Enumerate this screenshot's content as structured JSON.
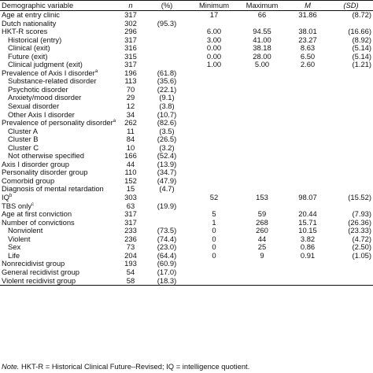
{
  "headers": [
    "Demographic variable",
    "n",
    "(%)",
    "Minimum",
    "Maximum",
    "M",
    "(SD)"
  ],
  "rows": [
    {
      "label": "Age at entry clinic",
      "indent": false,
      "sup": "",
      "n": "317",
      "pct": "",
      "min": "17",
      "max": "66",
      "m": "31.86",
      "sd": "(8.72)"
    },
    {
      "label": "Dutch nationality",
      "indent": false,
      "sup": "",
      "n": "302",
      "pct": "(95.3)",
      "min": "",
      "max": "",
      "m": "",
      "sd": ""
    },
    {
      "label": "HKT-R scores",
      "indent": false,
      "sup": "",
      "n": "296",
      "pct": "",
      "min": "6.00",
      "max": "94.55",
      "m": "38.01",
      "sd": "(16.66)"
    },
    {
      "label": "Historical (entry)",
      "indent": true,
      "sup": "",
      "n": "317",
      "pct": "",
      "min": "3.00",
      "max": "41.00",
      "m": "23.27",
      "sd": "(8.92)"
    },
    {
      "label": "Clinical (exit)",
      "indent": true,
      "sup": "",
      "n": "316",
      "pct": "",
      "min": "0.00",
      "max": "38.18",
      "m": "8.63",
      "sd": "(5.14)"
    },
    {
      "label": "Future (exit)",
      "indent": true,
      "sup": "",
      "n": "315",
      "pct": "",
      "min": "0.00",
      "max": "28.00",
      "m": "6.50",
      "sd": "(5.14)"
    },
    {
      "label": "Clinical judgment (exit)",
      "indent": true,
      "sup": "",
      "n": "317",
      "pct": "",
      "min": "1.00",
      "max": "5.00",
      "m": "2.60",
      "sd": "(1.21)"
    },
    {
      "label": "Prevalence of Axis I disorder",
      "indent": false,
      "sup": "a",
      "n": "196",
      "pct": "(61.8)",
      "min": "",
      "max": "",
      "m": "",
      "sd": ""
    },
    {
      "label": "Substance-related disorder",
      "indent": true,
      "sup": "",
      "n": "113",
      "pct": "(35.6)",
      "min": "",
      "max": "",
      "m": "",
      "sd": ""
    },
    {
      "label": "Psychotic disorder",
      "indent": true,
      "sup": "",
      "n": "70",
      "pct": "(22.1)",
      "min": "",
      "max": "",
      "m": "",
      "sd": ""
    },
    {
      "label": "Anxiety/mood disorder",
      "indent": true,
      "sup": "",
      "n": "29",
      "pct": "(9.1)",
      "min": "",
      "max": "",
      "m": "",
      "sd": ""
    },
    {
      "label": "Sexual disorder",
      "indent": true,
      "sup": "",
      "n": "12",
      "pct": "(3.8)",
      "min": "",
      "max": "",
      "m": "",
      "sd": ""
    },
    {
      "label": "Other Axis I disorder",
      "indent": true,
      "sup": "",
      "n": "34",
      "pct": "(10.7)",
      "min": "",
      "max": "",
      "m": "",
      "sd": ""
    },
    {
      "label": "Prevalence of personality disorder",
      "indent": false,
      "sup": "a",
      "n": "262",
      "pct": "(82.6)",
      "min": "",
      "max": "",
      "m": "",
      "sd": ""
    },
    {
      "label": "Cluster A",
      "indent": true,
      "sup": "",
      "n": "11",
      "pct": "(3.5)",
      "min": "",
      "max": "",
      "m": "",
      "sd": ""
    },
    {
      "label": "Cluster B",
      "indent": true,
      "sup": "",
      "n": "84",
      "pct": "(26.5)",
      "min": "",
      "max": "",
      "m": "",
      "sd": ""
    },
    {
      "label": "Cluster C",
      "indent": true,
      "sup": "",
      "n": "10",
      "pct": "(3.2)",
      "min": "",
      "max": "",
      "m": "",
      "sd": ""
    },
    {
      "label": "Not otherwise specified",
      "indent": true,
      "sup": "",
      "n": "166",
      "pct": "(52.4)",
      "min": "",
      "max": "",
      "m": "",
      "sd": ""
    },
    {
      "label": "Axis I disorder group",
      "indent": false,
      "sup": "",
      "n": "44",
      "pct": "(13.9)",
      "min": "",
      "max": "",
      "m": "",
      "sd": ""
    },
    {
      "label": "Personality disorder group",
      "indent": false,
      "sup": "",
      "n": "110",
      "pct": "(34.7)",
      "min": "",
      "max": "",
      "m": "",
      "sd": ""
    },
    {
      "label": "Comorbid group",
      "indent": false,
      "sup": "",
      "n": "152",
      "pct": "(47.9)",
      "min": "",
      "max": "",
      "m": "",
      "sd": ""
    },
    {
      "label": "Diagnosis of mental retardation",
      "indent": false,
      "sup": "",
      "n": "15",
      "pct": "(4.7)",
      "min": "",
      "max": "",
      "m": "",
      "sd": ""
    },
    {
      "label": "IQ",
      "indent": false,
      "sup": "b",
      "n": "303",
      "pct": "",
      "min": "52",
      "max": "153",
      "m": "98.07",
      "sd": "(15.52)"
    },
    {
      "label": "TBS only",
      "indent": false,
      "sup": "c",
      "n": "63",
      "pct": "(19.9)",
      "min": "",
      "max": "",
      "m": "",
      "sd": ""
    },
    {
      "label": "Age at first conviction",
      "indent": false,
      "sup": "",
      "n": "317",
      "pct": "",
      "min": "5",
      "max": "59",
      "m": "20.44",
      "sd": "(7.93)"
    },
    {
      "label": "Number of convictions",
      "indent": false,
      "sup": "",
      "n": "317",
      "pct": "",
      "min": "1",
      "max": "268",
      "m": "15.71",
      "sd": "(26.36)"
    },
    {
      "label": "Nonviolent",
      "indent": true,
      "sup": "",
      "n": "233",
      "pct": "(73.5)",
      "min": "0",
      "max": "260",
      "m": "10.15",
      "sd": "(23.33)"
    },
    {
      "label": "Violent",
      "indent": true,
      "sup": "",
      "n": "236",
      "pct": "(74.4)",
      "min": "0",
      "max": "44",
      "m": "3.82",
      "sd": "(4.72)"
    },
    {
      "label": "Sex",
      "indent": true,
      "sup": "",
      "n": "73",
      "pct": "(23.0)",
      "min": "0",
      "max": "25",
      "m": "0.86",
      "sd": "(2.50)"
    },
    {
      "label": "Life",
      "indent": true,
      "sup": "",
      "n": "204",
      "pct": "(64.4)",
      "min": "0",
      "max": "9",
      "m": "0.91",
      "sd": "(1.05)"
    },
    {
      "label": "Nonrecidivist group",
      "indent": false,
      "sup": "",
      "n": "193",
      "pct": "(60.9)",
      "min": "",
      "max": "",
      "m": "",
      "sd": ""
    },
    {
      "label": "General recidivist group",
      "indent": false,
      "sup": "",
      "n": "54",
      "pct": "(17.0)",
      "min": "",
      "max": "",
      "m": "",
      "sd": ""
    },
    {
      "label": "Violent recidivist group",
      "indent": false,
      "sup": "",
      "n": "58",
      "pct": "(18.3)",
      "min": "",
      "max": "",
      "m": "",
      "sd": ""
    }
  ],
  "note": {
    "lead": "Note.",
    "text": " HKT-R = Historical Clinical Future–Revised; IQ = intelligence quotient."
  }
}
